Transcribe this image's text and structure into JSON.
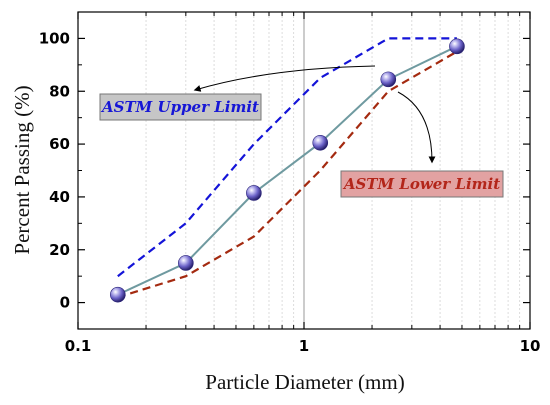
{
  "chart_data": {
    "type": "line",
    "xlabel": "Particle Diameter (mm)",
    "ylabel": "Percent Passing (%)",
    "x_scale": "log",
    "xlim": [
      0.1,
      10
    ],
    "ylim": [
      -10,
      110
    ],
    "x_ticks": [
      "0.1",
      "1",
      "10"
    ],
    "y_ticks": [
      0,
      20,
      40,
      60,
      80,
      100
    ],
    "grid": "vertical minor gridlines on log x axis",
    "series": [
      {
        "style": "solid line with spherical markers",
        "color": "#6f9aa0",
        "marker_color": "#6b62c8",
        "points": [
          [
            0.15,
            3
          ],
          [
            0.3,
            15
          ],
          [
            0.6,
            41.5
          ],
          [
            1.18,
            60.5
          ],
          [
            2.36,
            84.5
          ],
          [
            4.75,
            97
          ]
        ]
      },
      {
        "name": "ASTM Upper Limit",
        "style": "dashed",
        "color": "#1414d8",
        "points": [
          [
            0.15,
            10
          ],
          [
            0.3,
            30
          ],
          [
            0.6,
            60
          ],
          [
            1.18,
            85
          ],
          [
            2.36,
            100
          ],
          [
            4.75,
            100
          ]
        ]
      },
      {
        "name": "ASTM Lower Limit",
        "style": "dashed",
        "color": "#a42a10",
        "points": [
          [
            0.15,
            2
          ],
          [
            0.3,
            10
          ],
          [
            0.6,
            25
          ],
          [
            1.18,
            50
          ],
          [
            2.36,
            80
          ],
          [
            4.75,
            95
          ]
        ]
      }
    ],
    "reference_line": {
      "x": 1,
      "color": "#9a9a9a"
    },
    "annotations": [
      {
        "text": "ASTM Upper Limit",
        "color": "#1616d6",
        "box_fill": "#c6c6c6",
        "arrow_to": "upper series"
      },
      {
        "text": "ASTM Lower Limit",
        "color": "#b3261a",
        "box_fill": "#e2a2a2",
        "arrow_to": "lower series"
      }
    ]
  }
}
